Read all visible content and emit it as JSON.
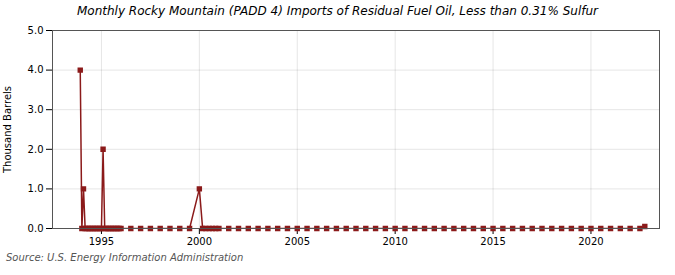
{
  "chart_data": {
    "type": "line",
    "title": "Monthly Rocky Mountain (PADD 4) Imports of Residual Fuel Oil, Less than 0.31% Sulfur",
    "ylabel": "Thousand Barrels",
    "source": "Source: U.S. Energy Information Administration",
    "color": "#8b1a1a",
    "marker": "square",
    "line_style": "solid",
    "grid": true,
    "xlim": [
      1992.5,
      2023.5
    ],
    "xticks": [
      1995,
      2000,
      2005,
      2010,
      2015,
      2020
    ],
    "ylim": [
      0,
      5.0
    ],
    "yticks": [
      {
        "value": 0.0,
        "label": "0.0"
      },
      {
        "value": 1.0,
        "label": "1.0"
      },
      {
        "value": 2.0,
        "label": "2.0"
      },
      {
        "value": 3.0,
        "label": "3.0"
      },
      {
        "value": 4.0,
        "label": "4.0"
      },
      {
        "value": 5.0,
        "label": "5.0"
      }
    ],
    "x": [
      1993.917,
      1994.0,
      1994.083,
      1994.167,
      1994.25,
      1994.333,
      1994.417,
      1994.5,
      1994.583,
      1994.667,
      1994.75,
      1994.833,
      1994.917,
      1995.0,
      1995.083,
      1995.167,
      1995.25,
      1995.333,
      1995.417,
      1995.5,
      1995.583,
      1995.667,
      1995.75,
      1995.833,
      1995.917,
      1996.0,
      1996.5,
      1997.0,
      1997.5,
      1998.0,
      1998.5,
      1999.0,
      1999.5,
      2000.0,
      2000.167,
      2000.333,
      2000.5,
      2000.667,
      2000.833,
      2001.0,
      2001.5,
      2002.0,
      2002.5,
      2003.0,
      2003.5,
      2004.0,
      2004.5,
      2005.0,
      2005.5,
      2006.0,
      2006.5,
      2007.0,
      2007.5,
      2008.0,
      2008.5,
      2009.0,
      2009.5,
      2010.0,
      2010.5,
      2011.0,
      2011.5,
      2012.0,
      2012.5,
      2013.0,
      2013.5,
      2014.0,
      2014.5,
      2015.0,
      2015.5,
      2016.0,
      2016.5,
      2017.0,
      2017.5,
      2018.0,
      2018.5,
      2019.0,
      2019.5,
      2020.0,
      2020.5,
      2021.0,
      2021.5,
      2022.0,
      2022.5,
      2022.75
    ],
    "values": [
      4.0,
      0.0,
      1.0,
      0.0,
      0.0,
      0.0,
      0.0,
      0.0,
      0.0,
      0.0,
      0.0,
      0.0,
      0.0,
      0.0,
      2.0,
      0.0,
      0.0,
      0.0,
      0.0,
      0.0,
      0.0,
      0.0,
      0.0,
      0.0,
      0.0,
      0.0,
      0.0,
      0.0,
      0.0,
      0.0,
      0.0,
      0.0,
      0.0,
      1.0,
      0.0,
      0.0,
      0.0,
      0.0,
      0.0,
      0.0,
      0.0,
      0.0,
      0.0,
      0.0,
      0.0,
      0.0,
      0.0,
      0.0,
      0.0,
      0.0,
      0.0,
      0.0,
      0.0,
      0.0,
      0.0,
      0.0,
      0.0,
      0.0,
      0.0,
      0.0,
      0.0,
      0.0,
      0.0,
      0.0,
      0.0,
      0.0,
      0.0,
      0.0,
      0.0,
      0.0,
      0.0,
      0.0,
      0.0,
      0.0,
      0.0,
      0.0,
      0.0,
      0.0,
      0.0,
      0.0,
      0.0,
      0.0,
      0.0,
      0.05
    ]
  }
}
